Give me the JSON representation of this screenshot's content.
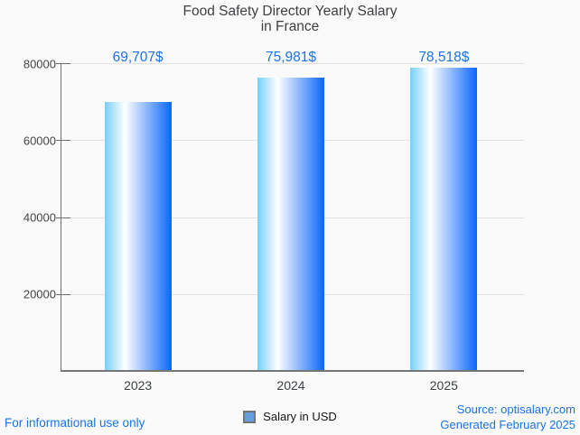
{
  "title": {
    "line1": "Food Safety Director Yearly Salary",
    "line2": "in France"
  },
  "chart_data": {
    "type": "bar",
    "title": "Food Safety Director Yearly Salary in France",
    "categories": [
      "2023",
      "2024",
      "2025"
    ],
    "series": [
      {
        "name": "Salary in USD",
        "values": [
          69707,
          75981,
          78518
        ]
      }
    ],
    "value_labels": [
      "69,707$",
      "75,981$",
      "78,518$"
    ],
    "y_ticks": [
      20000,
      40000,
      60000,
      80000
    ],
    "y_tick_labels": [
      "20000",
      "40000",
      "60000",
      "80000"
    ],
    "ylim": [
      0,
      80000
    ],
    "xlabel": "",
    "ylabel": "",
    "grid": true,
    "legend_position": "bottom"
  },
  "legend": {
    "label": "Salary in USD"
  },
  "footer": {
    "left": "For informational use only",
    "source": "Source: optisalary.com",
    "generated": "Generated February 2025"
  },
  "colors": {
    "accent_text": "#1a73e8",
    "title_text": "#3e4043",
    "axis": "#757575",
    "grid": "#e2e2e2",
    "bar_gradient_left": "#76d0f7",
    "bar_gradient_mid": "#ffffff",
    "bar_gradient_right": "#0b66fb",
    "legend_fill": "#63a0dd",
    "legend_border": "#757575"
  }
}
